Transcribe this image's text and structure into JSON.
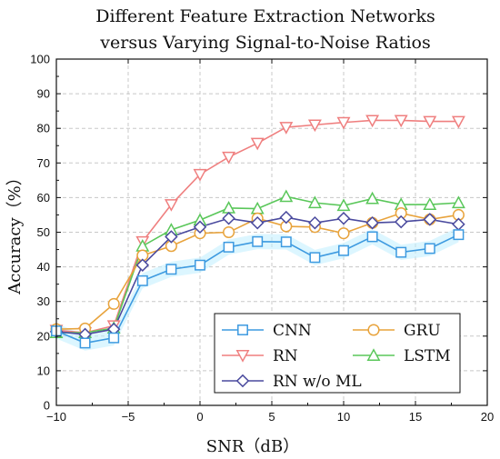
{
  "chart_data": {
    "type": "line",
    "title_lines": [
      "Different Feature Extraction Networks",
      "versus Varying Signal-to-Noise Ratios"
    ],
    "xlabel": "SNR（dB）",
    "ylabel": "Accuracy（%）",
    "xlim": [
      -10,
      20
    ],
    "ylim": [
      0,
      100
    ],
    "xticks": [
      -10,
      -5,
      0,
      5,
      10,
      15,
      20
    ],
    "yticks": [
      0,
      10,
      20,
      30,
      40,
      50,
      60,
      70,
      80,
      90,
      100
    ],
    "grid": true,
    "legend_position": "bottom-right",
    "x": [
      -10,
      -8,
      -6,
      -4,
      -2,
      0,
      2,
      4,
      6,
      8,
      10,
      12,
      14,
      16,
      18
    ],
    "series": [
      {
        "name": "CNN",
        "color": "#3d9ae0",
        "marker": "square",
        "values": [
          21.5,
          18.0,
          19.5,
          36.0,
          39.3,
          40.5,
          45.7,
          47.3,
          47.2,
          42.7,
          44.7,
          48.7,
          44.2,
          45.3,
          49.3
        ]
      },
      {
        "name": "GRU",
        "color": "#e8a33c",
        "marker": "circle",
        "values": [
          22.0,
          22.2,
          29.3,
          43.3,
          46.0,
          49.7,
          50.0,
          54.0,
          51.7,
          51.5,
          49.7,
          52.7,
          55.5,
          53.7,
          55.0
        ]
      },
      {
        "name": "RN",
        "color": "#ef7f7f",
        "marker": "triangle-down",
        "values": [
          21.7,
          21.0,
          23.0,
          47.3,
          58.0,
          66.7,
          71.7,
          75.7,
          80.3,
          81.0,
          81.7,
          82.3,
          82.3,
          82.0,
          82.0
        ]
      },
      {
        "name": "LSTM",
        "color": "#5ac75a",
        "marker": "triangle-up",
        "values": [
          21.0,
          21.0,
          22.3,
          46.0,
          50.7,
          53.5,
          57.0,
          56.8,
          60.3,
          58.5,
          57.7,
          59.7,
          58.0,
          58.0,
          58.5
        ]
      },
      {
        "name": "RN w/o ML",
        "color": "#4a4a9e",
        "marker": "diamond",
        "values": [
          21.3,
          20.5,
          22.0,
          40.5,
          48.7,
          51.5,
          54.0,
          52.7,
          54.3,
          52.7,
          54.0,
          52.7,
          53.0,
          53.7,
          52.3
        ]
      }
    ]
  }
}
